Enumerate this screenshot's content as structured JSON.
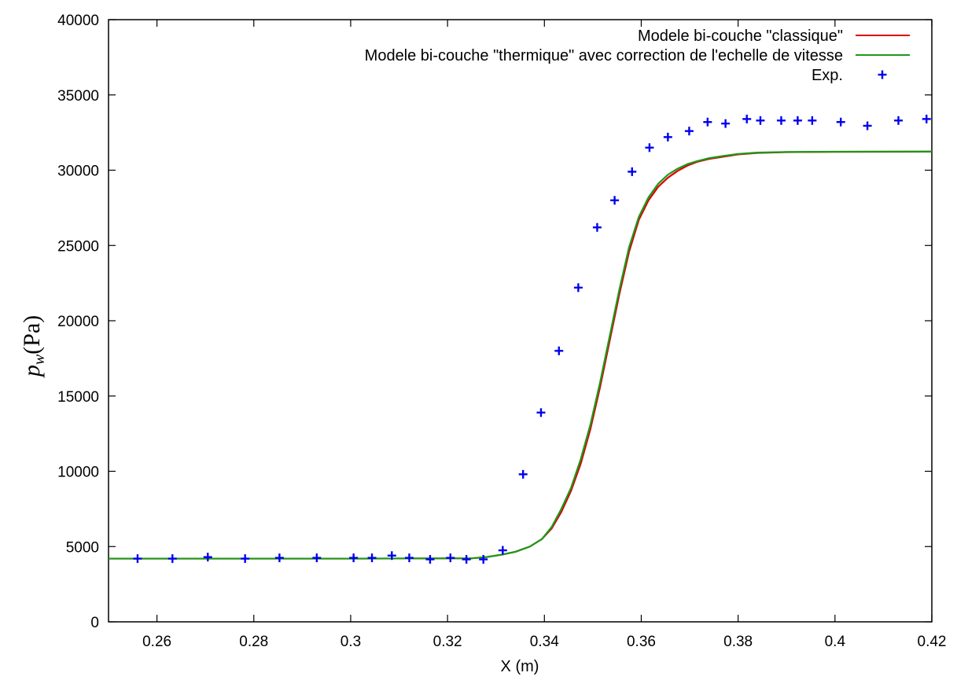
{
  "chart_data": {
    "type": "line",
    "xlabel": "X (m)",
    "ylabel_main": "p",
    "ylabel_sub": "w",
    "ylabel_unit": "(Pa)",
    "xlim": [
      0.25,
      0.42
    ],
    "ylim": [
      0,
      40000
    ],
    "xticks": [
      0.26,
      0.28,
      0.3,
      0.32,
      0.34,
      0.36,
      0.38,
      0.4,
      0.42
    ],
    "yticks": [
      0,
      5000,
      10000,
      15000,
      20000,
      25000,
      30000,
      35000,
      40000
    ],
    "legend_position": "top-right",
    "grid": false,
    "series": [
      {
        "name": "Modele bi-couche \"classique\"",
        "style": "line",
        "color": "#dd0000",
        "x": [
          0.25,
          0.3,
          0.325,
          0.328,
          0.331,
          0.334,
          0.337,
          0.3395,
          0.3415,
          0.3435,
          0.3455,
          0.3475,
          0.3495,
          0.3515,
          0.3535,
          0.3555,
          0.3575,
          0.3595,
          0.3615,
          0.3635,
          0.3655,
          0.3675,
          0.3695,
          0.3715,
          0.374,
          0.377,
          0.38,
          0.384,
          0.39,
          0.4,
          0.42
        ],
        "y": [
          4200,
          4200,
          4220,
          4300,
          4450,
          4650,
          5000,
          5500,
          6200,
          7300,
          8700,
          10500,
          12800,
          15600,
          18700,
          21800,
          24600,
          26700,
          28000,
          28900,
          29500,
          29950,
          30300,
          30550,
          30750,
          30900,
          31050,
          31150,
          31200,
          31220,
          31230
        ]
      },
      {
        "name": "Modele bi-couche \"thermique\" avec correction de l'echelle de vitesse",
        "style": "line",
        "color": "#1a9a1a",
        "x": [
          0.25,
          0.3,
          0.325,
          0.328,
          0.331,
          0.334,
          0.337,
          0.3395,
          0.3415,
          0.3435,
          0.3455,
          0.3475,
          0.3495,
          0.3515,
          0.3535,
          0.3555,
          0.3575,
          0.3595,
          0.3615,
          0.3635,
          0.3655,
          0.3675,
          0.3695,
          0.3715,
          0.374,
          0.377,
          0.38,
          0.384,
          0.39,
          0.4,
          0.42
        ],
        "y": [
          4200,
          4200,
          4220,
          4300,
          4450,
          4650,
          5000,
          5500,
          6300,
          7500,
          8900,
          10800,
          13100,
          15900,
          19000,
          22100,
          24900,
          26900,
          28200,
          29100,
          29700,
          30100,
          30400,
          30600,
          30800,
          30950,
          31080,
          31170,
          31210,
          31230,
          31240
        ]
      },
      {
        "name": "Exp.",
        "style": "points",
        "color": "#0000ee",
        "x": [
          0.256,
          0.2632,
          0.2705,
          0.2782,
          0.2853,
          0.293,
          0.3006,
          0.3044,
          0.3085,
          0.3121,
          0.3164,
          0.3206,
          0.3239,
          0.3274,
          0.3314,
          0.3356,
          0.3393,
          0.343,
          0.347,
          0.3509,
          0.3545,
          0.3581,
          0.3617,
          0.3655,
          0.3699,
          0.3737,
          0.3774,
          0.3818,
          0.3846,
          0.3889,
          0.3923,
          0.3953,
          0.4012,
          0.4067,
          0.4131,
          0.4189
        ],
        "y": [
          4200,
          4200,
          4300,
          4200,
          4250,
          4250,
          4250,
          4250,
          4400,
          4250,
          4150,
          4250,
          4150,
          4150,
          4750,
          9800,
          13900,
          18000,
          22200,
          26200,
          28000,
          29900,
          31500,
          32200,
          32600,
          33200,
          33100,
          33400,
          33300,
          33300,
          33300,
          33300,
          33200,
          32950,
          33300,
          33400
        ]
      }
    ]
  }
}
